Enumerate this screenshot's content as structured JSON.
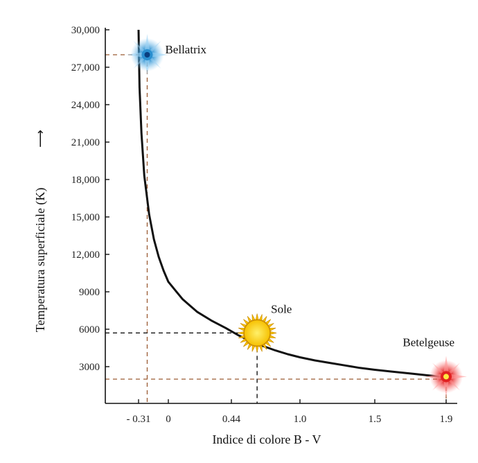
{
  "chart_data": {
    "type": "line",
    "title": "",
    "xlabel": "Indice di colore B - V",
    "ylabel": "Temperatura superficiale (K)",
    "xlim": [
      -0.55,
      2.05
    ],
    "ylim": [
      0,
      30000
    ],
    "x_ticks": [
      {
        "value": -0.31,
        "label": "- 0.31"
      },
      {
        "value": 0,
        "label": "0"
      },
      {
        "value": 0.44,
        "label": "0.44"
      },
      {
        "value": 1.0,
        "label": "1.0"
      },
      {
        "value": 1.5,
        "label": "1.5"
      },
      {
        "value": 1.9,
        "label": "1.9"
      }
    ],
    "y_ticks": [
      {
        "value": 3000,
        "label": "3000"
      },
      {
        "value": 6000,
        "label": "6000"
      },
      {
        "value": 9000,
        "label": "9000"
      },
      {
        "value": 12000,
        "label": "12,000"
      },
      {
        "value": 15000,
        "label": "15,000"
      },
      {
        "value": 18000,
        "label": "18,000"
      },
      {
        "value": 21000,
        "label": "21,000"
      },
      {
        "value": 24000,
        "label": "24,000"
      },
      {
        "value": 27000,
        "label": "27,000"
      },
      {
        "value": 30000,
        "label": "30,000"
      }
    ],
    "series": [
      {
        "x": [
          -0.31,
          -0.3,
          -0.28,
          -0.25,
          -0.2,
          -0.15,
          -0.1,
          -0.05,
          0,
          0.05,
          0.1,
          0.15,
          0.2,
          0.3,
          0.4,
          0.5,
          0.6,
          0.7,
          0.8,
          0.9,
          1.0,
          1.1,
          1.2,
          1.3,
          1.4,
          1.5,
          1.6,
          1.7,
          1.8,
          1.9
        ],
        "y": [
          30000,
          25400,
          21700,
          18300,
          15200,
          13200,
          11800,
          10700,
          9800,
          9100,
          8400,
          7900,
          7400,
          6700,
          6100,
          5500,
          5050,
          4650,
          4300,
          4000,
          3750,
          3500,
          3300,
          3100,
          2900,
          2750,
          2600,
          2450,
          2300,
          2150
        ]
      }
    ],
    "stars": [
      {
        "name": "Bellatrix",
        "x": -0.22,
        "y": 28000,
        "color": "#2a8fd0",
        "kind": "blue-star-icon"
      },
      {
        "name": "Sole",
        "x": 0.65,
        "y": 5700,
        "color": "#f6c000",
        "kind": "sun-icon"
      },
      {
        "name": "Betelgeuse",
        "x": 1.9,
        "y": 2200,
        "color": "#e02020",
        "kind": "red-star-icon"
      }
    ],
    "reference_lines": [
      {
        "x": -0.22,
        "y": 28000,
        "color": "#9a5a32"
      },
      {
        "x": 0.65,
        "y": 5700,
        "color": "#000000"
      },
      {
        "x": 1.9,
        "y": 2000,
        "color": "#9a5a32"
      }
    ],
    "y_arrow": "↑",
    "grid": false,
    "legend": "none"
  }
}
